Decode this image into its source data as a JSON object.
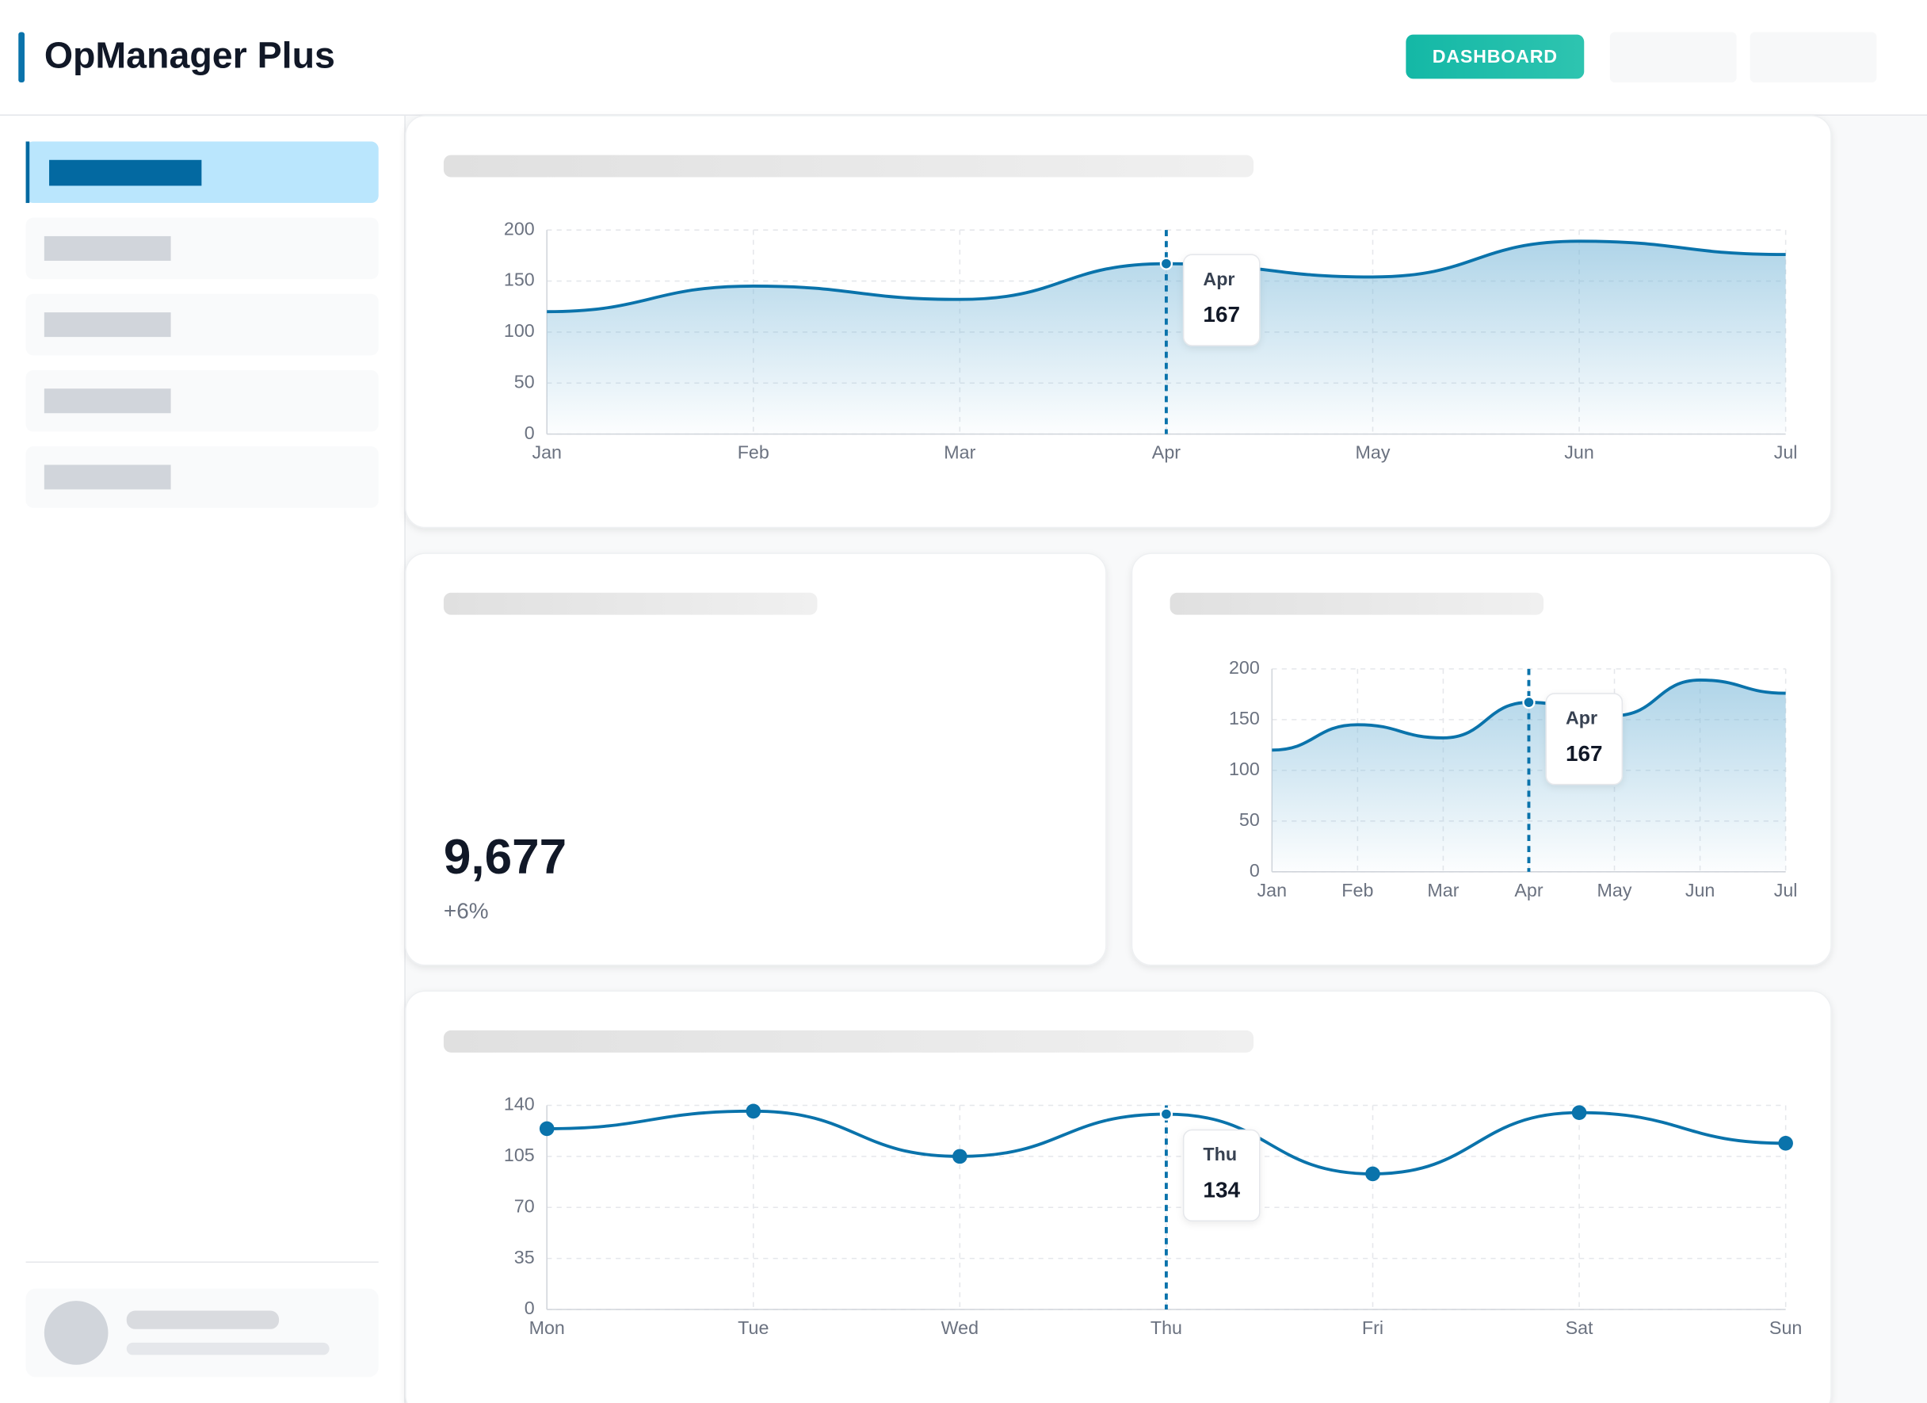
{
  "header": {
    "title": "OpManager Plus",
    "nav": [
      "DASHBOARD"
    ]
  },
  "stat": {
    "value": "9,677",
    "change": "+6%"
  },
  "chart_data": [
    {
      "type": "area",
      "categories": [
        "Jan",
        "Feb",
        "Mar",
        "Apr",
        "May",
        "Jun",
        "Jul"
      ],
      "values": [
        120,
        145,
        132,
        167,
        154,
        189,
        176
      ],
      "color": "#0a73ab",
      "ylim": [
        0,
        200
      ],
      "yticks": [
        0,
        50,
        100,
        150,
        200
      ],
      "grid": true
    },
    {
      "type": "area",
      "categories": [
        "Jan",
        "Feb",
        "Mar",
        "Apr",
        "May",
        "Jun",
        "Jul"
      ],
      "values": [
        120,
        145,
        132,
        167,
        154,
        189,
        176
      ],
      "color": "#0a73ab",
      "ylim": [
        0,
        200
      ],
      "yticks": [
        0,
        50,
        100,
        150,
        200
      ],
      "grid": true
    },
    {
      "type": "line",
      "categories": [
        "Mon",
        "Tue",
        "Wed",
        "Thu",
        "Fri",
        "Sat",
        "Sun"
      ],
      "values": [
        124,
        136,
        105,
        134,
        93,
        135,
        114
      ],
      "color": "#0a73ab",
      "ylim": [
        0,
        140
      ],
      "yticks": [
        0,
        35,
        70,
        105,
        140
      ],
      "grid": true
    }
  ]
}
